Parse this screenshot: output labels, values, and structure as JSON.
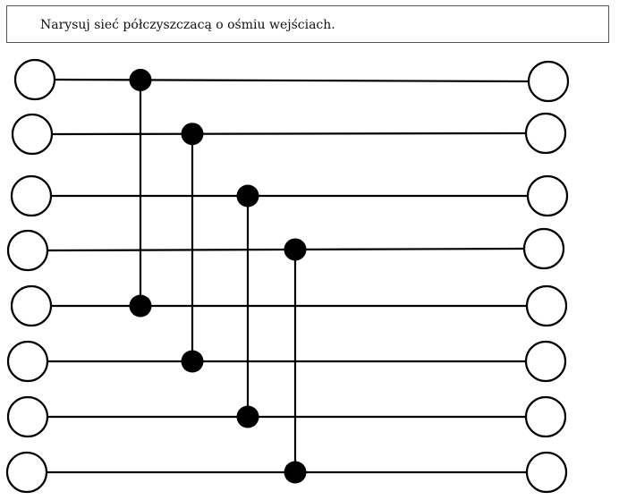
{
  "prompt": {
    "text": "Narysuj sieć półczyszczacą o ośmiu wejściach."
  },
  "network": {
    "wire_count": 8,
    "comparators": [
      [
        1,
        5
      ],
      [
        2,
        6
      ],
      [
        3,
        7
      ],
      [
        4,
        8
      ]
    ],
    "colors": {
      "line": "#000000",
      "terminal_fill": "#ffffff",
      "node_fill": "#000000"
    }
  }
}
